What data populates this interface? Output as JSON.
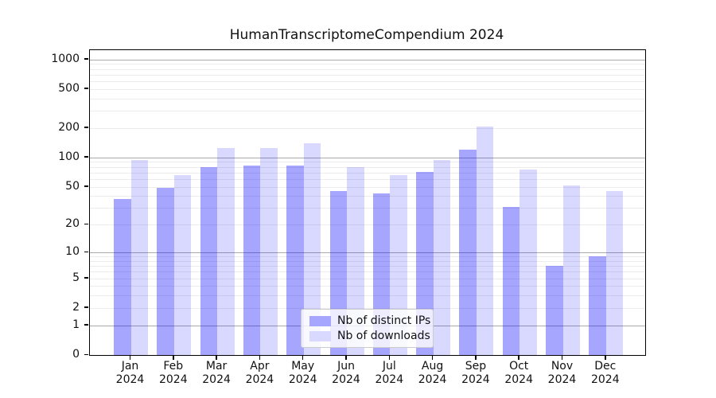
{
  "title": "HumanTranscriptomeCompendium 2024",
  "chart_data": {
    "type": "bar",
    "title": "HumanTranscriptomeCompendium 2024",
    "categories": [
      "Jan 2024",
      "Feb 2024",
      "Mar 2024",
      "Apr 2024",
      "May 2024",
      "Jun 2024",
      "Jul 2024",
      "Aug 2024",
      "Sep 2024",
      "Oct 2024",
      "Nov 2024",
      "Dec 2024"
    ],
    "x_tick_line1": [
      "Jan",
      "Feb",
      "Mar",
      "Apr",
      "May",
      "Jun",
      "Jul",
      "Aug",
      "Sep",
      "Oct",
      "Nov",
      "Dec"
    ],
    "x_tick_line2": [
      "2024",
      "2024",
      "2024",
      "2024",
      "2024",
      "2024",
      "2024",
      "2024",
      "2024",
      "2024",
      "2024",
      "2024"
    ],
    "series": [
      {
        "name": "Nb of distinct IPs",
        "color": "rgba(0,0,255,0.35)",
        "color_hex": "#a6a6ff",
        "values": [
          37,
          49,
          80,
          83,
          83,
          45,
          43,
          71,
          121,
          31,
          7,
          9
        ]
      },
      {
        "name": "Nb of downloads",
        "color": "rgba(0,0,255,0.15)",
        "color_hex": "#d9d9ff",
        "values": [
          95,
          66,
          126,
          126,
          140,
          79,
          66,
          95,
          207,
          75,
          52,
          45
        ]
      }
    ],
    "y_axis": {
      "scale": "log1p",
      "tick_values": [
        0,
        1,
        2,
        5,
        10,
        20,
        50,
        100,
        200,
        500,
        1000
      ],
      "tick_labels": [
        "0",
        "1",
        "2",
        "5",
        "10",
        "20",
        "50",
        "100",
        "200",
        "500",
        "1000"
      ],
      "major_grid_values": [
        1,
        10,
        100,
        1000
      ],
      "minor_grid_values": [
        2,
        3,
        4,
        5,
        6,
        7,
        8,
        9,
        20,
        30,
        40,
        50,
        60,
        70,
        80,
        90,
        200,
        300,
        400,
        500,
        600,
        700,
        800,
        900
      ],
      "ylim": [
        0,
        1250
      ],
      "grid": true
    },
    "legend": {
      "entries": [
        "Nb of distinct IPs",
        "Nb of downloads"
      ],
      "position": "lower-center"
    }
  }
}
